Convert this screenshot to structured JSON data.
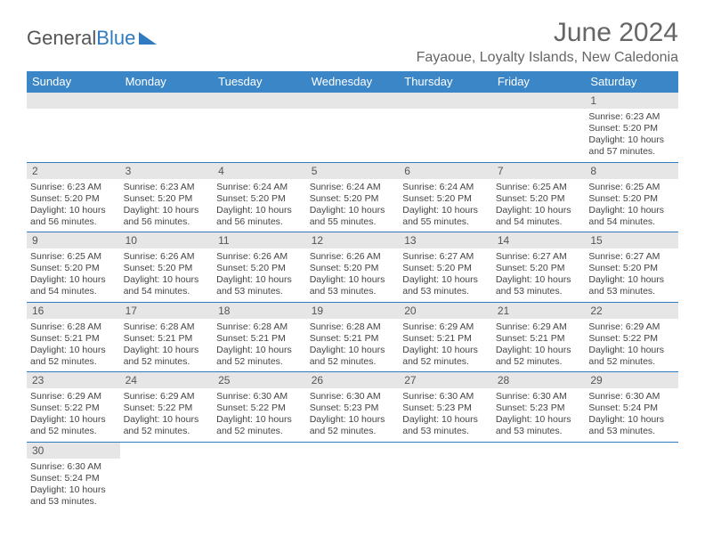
{
  "brand": {
    "part1": "General",
    "part2": "Blue"
  },
  "title": "June 2024",
  "location": "Fayaoue, Loyalty Islands, New Caledonia",
  "columns": [
    "Sunday",
    "Monday",
    "Tuesday",
    "Wednesday",
    "Thursday",
    "Friday",
    "Saturday"
  ],
  "colors": {
    "header_bg": "#3b86c6",
    "header_text": "#ffffff",
    "daynum_bg": "#e6e6e6",
    "rule": "#2f7ac0",
    "text": "#444444"
  },
  "weeks": [
    [
      null,
      null,
      null,
      null,
      null,
      null,
      {
        "n": "1",
        "sr": "Sunrise: 6:23 AM",
        "ss": "Sunset: 5:20 PM",
        "d1": "Daylight: 10 hours",
        "d2": "and 57 minutes."
      }
    ],
    [
      {
        "n": "2",
        "sr": "Sunrise: 6:23 AM",
        "ss": "Sunset: 5:20 PM",
        "d1": "Daylight: 10 hours",
        "d2": "and 56 minutes."
      },
      {
        "n": "3",
        "sr": "Sunrise: 6:23 AM",
        "ss": "Sunset: 5:20 PM",
        "d1": "Daylight: 10 hours",
        "d2": "and 56 minutes."
      },
      {
        "n": "4",
        "sr": "Sunrise: 6:24 AM",
        "ss": "Sunset: 5:20 PM",
        "d1": "Daylight: 10 hours",
        "d2": "and 56 minutes."
      },
      {
        "n": "5",
        "sr": "Sunrise: 6:24 AM",
        "ss": "Sunset: 5:20 PM",
        "d1": "Daylight: 10 hours",
        "d2": "and 55 minutes."
      },
      {
        "n": "6",
        "sr": "Sunrise: 6:24 AM",
        "ss": "Sunset: 5:20 PM",
        "d1": "Daylight: 10 hours",
        "d2": "and 55 minutes."
      },
      {
        "n": "7",
        "sr": "Sunrise: 6:25 AM",
        "ss": "Sunset: 5:20 PM",
        "d1": "Daylight: 10 hours",
        "d2": "and 54 minutes."
      },
      {
        "n": "8",
        "sr": "Sunrise: 6:25 AM",
        "ss": "Sunset: 5:20 PM",
        "d1": "Daylight: 10 hours",
        "d2": "and 54 minutes."
      }
    ],
    [
      {
        "n": "9",
        "sr": "Sunrise: 6:25 AM",
        "ss": "Sunset: 5:20 PM",
        "d1": "Daylight: 10 hours",
        "d2": "and 54 minutes."
      },
      {
        "n": "10",
        "sr": "Sunrise: 6:26 AM",
        "ss": "Sunset: 5:20 PM",
        "d1": "Daylight: 10 hours",
        "d2": "and 54 minutes."
      },
      {
        "n": "11",
        "sr": "Sunrise: 6:26 AM",
        "ss": "Sunset: 5:20 PM",
        "d1": "Daylight: 10 hours",
        "d2": "and 53 minutes."
      },
      {
        "n": "12",
        "sr": "Sunrise: 6:26 AM",
        "ss": "Sunset: 5:20 PM",
        "d1": "Daylight: 10 hours",
        "d2": "and 53 minutes."
      },
      {
        "n": "13",
        "sr": "Sunrise: 6:27 AM",
        "ss": "Sunset: 5:20 PM",
        "d1": "Daylight: 10 hours",
        "d2": "and 53 minutes."
      },
      {
        "n": "14",
        "sr": "Sunrise: 6:27 AM",
        "ss": "Sunset: 5:20 PM",
        "d1": "Daylight: 10 hours",
        "d2": "and 53 minutes."
      },
      {
        "n": "15",
        "sr": "Sunrise: 6:27 AM",
        "ss": "Sunset: 5:20 PM",
        "d1": "Daylight: 10 hours",
        "d2": "and 53 minutes."
      }
    ],
    [
      {
        "n": "16",
        "sr": "Sunrise: 6:28 AM",
        "ss": "Sunset: 5:21 PM",
        "d1": "Daylight: 10 hours",
        "d2": "and 52 minutes."
      },
      {
        "n": "17",
        "sr": "Sunrise: 6:28 AM",
        "ss": "Sunset: 5:21 PM",
        "d1": "Daylight: 10 hours",
        "d2": "and 52 minutes."
      },
      {
        "n": "18",
        "sr": "Sunrise: 6:28 AM",
        "ss": "Sunset: 5:21 PM",
        "d1": "Daylight: 10 hours",
        "d2": "and 52 minutes."
      },
      {
        "n": "19",
        "sr": "Sunrise: 6:28 AM",
        "ss": "Sunset: 5:21 PM",
        "d1": "Daylight: 10 hours",
        "d2": "and 52 minutes."
      },
      {
        "n": "20",
        "sr": "Sunrise: 6:29 AM",
        "ss": "Sunset: 5:21 PM",
        "d1": "Daylight: 10 hours",
        "d2": "and 52 minutes."
      },
      {
        "n": "21",
        "sr": "Sunrise: 6:29 AM",
        "ss": "Sunset: 5:21 PM",
        "d1": "Daylight: 10 hours",
        "d2": "and 52 minutes."
      },
      {
        "n": "22",
        "sr": "Sunrise: 6:29 AM",
        "ss": "Sunset: 5:22 PM",
        "d1": "Daylight: 10 hours",
        "d2": "and 52 minutes."
      }
    ],
    [
      {
        "n": "23",
        "sr": "Sunrise: 6:29 AM",
        "ss": "Sunset: 5:22 PM",
        "d1": "Daylight: 10 hours",
        "d2": "and 52 minutes."
      },
      {
        "n": "24",
        "sr": "Sunrise: 6:29 AM",
        "ss": "Sunset: 5:22 PM",
        "d1": "Daylight: 10 hours",
        "d2": "and 52 minutes."
      },
      {
        "n": "25",
        "sr": "Sunrise: 6:30 AM",
        "ss": "Sunset: 5:22 PM",
        "d1": "Daylight: 10 hours",
        "d2": "and 52 minutes."
      },
      {
        "n": "26",
        "sr": "Sunrise: 6:30 AM",
        "ss": "Sunset: 5:23 PM",
        "d1": "Daylight: 10 hours",
        "d2": "and 52 minutes."
      },
      {
        "n": "27",
        "sr": "Sunrise: 6:30 AM",
        "ss": "Sunset: 5:23 PM",
        "d1": "Daylight: 10 hours",
        "d2": "and 53 minutes."
      },
      {
        "n": "28",
        "sr": "Sunrise: 6:30 AM",
        "ss": "Sunset: 5:23 PM",
        "d1": "Daylight: 10 hours",
        "d2": "and 53 minutes."
      },
      {
        "n": "29",
        "sr": "Sunrise: 6:30 AM",
        "ss": "Sunset: 5:24 PM",
        "d1": "Daylight: 10 hours",
        "d2": "and 53 minutes."
      }
    ],
    [
      {
        "n": "30",
        "sr": "Sunrise: 6:30 AM",
        "ss": "Sunset: 5:24 PM",
        "d1": "Daylight: 10 hours",
        "d2": "and 53 minutes."
      },
      null,
      null,
      null,
      null,
      null,
      null
    ]
  ]
}
